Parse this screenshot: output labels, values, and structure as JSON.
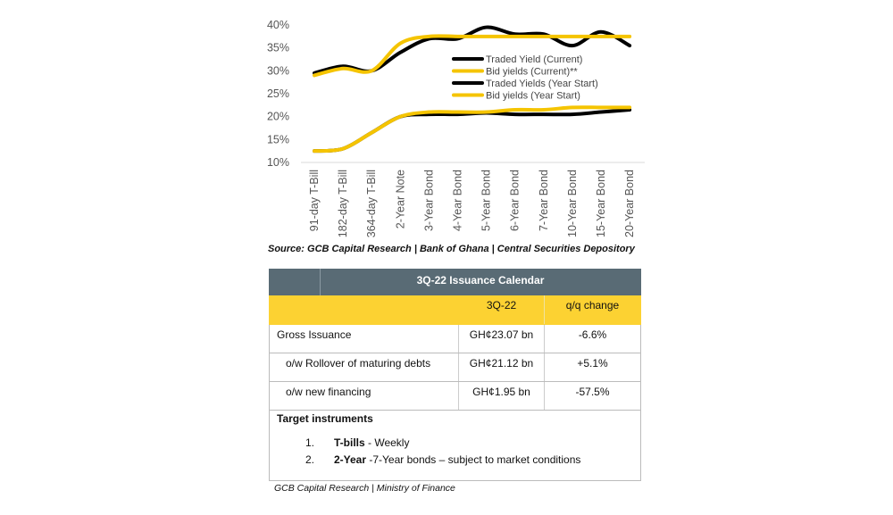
{
  "chart_data": {
    "type": "line",
    "categories": [
      "91-day T-Bill",
      "182-day T-Bill",
      "364-day T-Bill",
      "2-Year Note",
      "3-Year Bond",
      "4-Year Bond",
      "5-Year Bond",
      "6-Year Bond",
      "7-Year Bond",
      "10-Year Bond",
      "15-Year Bond",
      "20-Year Bond"
    ],
    "yticks": [
      "10%",
      "15%",
      "20%",
      "25%",
      "30%",
      "35%",
      "40%"
    ],
    "ylim": [
      10,
      40
    ],
    "legend_position": "center-right",
    "series": [
      {
        "name": "Traded Yield (Current)",
        "color": "#000000",
        "values": [
          29.5,
          31,
          30,
          34,
          37,
          37,
          39.5,
          38,
          38,
          35.5,
          38.5,
          35.5
        ]
      },
      {
        "name": "Bid yields (Current)**",
        "color": "#f5c400",
        "values": [
          29,
          30.5,
          30,
          36,
          37.5,
          37.5,
          37.5,
          37.5,
          37.5,
          37.5,
          37.5,
          37.5
        ]
      },
      {
        "name": "Traded Yields (Year Start)",
        "color": "#000000",
        "values": [
          12.5,
          13,
          16.5,
          20,
          20.5,
          20.5,
          20.8,
          20.5,
          20.5,
          20.5,
          21,
          21.5
        ]
      },
      {
        "name": "Bid yields (Year Start)",
        "color": "#f5c400",
        "values": [
          12.5,
          13,
          16.5,
          20,
          21,
          21,
          21,
          21.5,
          21.5,
          22,
          22,
          22
        ]
      }
    ]
  },
  "source": "Source: GCB Capital Research | Bank of Ghana | Central Securities Depository",
  "table": {
    "title": "3Q-22 Issuance Calendar",
    "col_period": "3Q-22",
    "col_change": "q/q change",
    "rows": [
      {
        "label": "Gross Issuance",
        "value": "GH¢23.07 bn",
        "change": "-6.6%"
      },
      {
        "label": "o/w Rollover of maturing debts",
        "value": "GH¢21.12 bn",
        "change": "+5.1%"
      },
      {
        "label": "o/w new financing",
        "value": "GH¢1.95 bn",
        "change": "-57.5%"
      }
    ],
    "target_heading": "Target instruments",
    "targets": [
      {
        "num": "1.",
        "bold": "T-bills",
        "rest": " - Weekly"
      },
      {
        "num": "2.",
        "bold": "2-Year",
        "rest": " -7-Year bonds – subject to market conditions"
      }
    ]
  },
  "footer": "GCB Capital Research | Ministry of Finance"
}
